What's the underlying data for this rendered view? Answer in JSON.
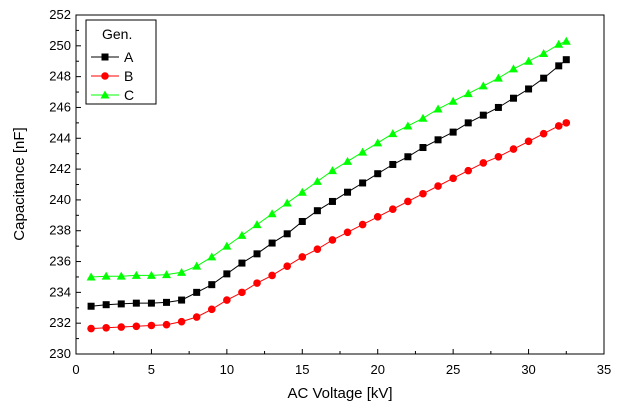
{
  "chart_data": {
    "type": "line",
    "xlabel": "AC Voltage [kV]",
    "ylabel": "Capacitance [nF]",
    "xlim": [
      0,
      35
    ],
    "ylim": [
      230,
      252
    ],
    "x_ticks": [
      0,
      5,
      10,
      15,
      20,
      25,
      30,
      35
    ],
    "y_ticks": [
      230,
      232,
      234,
      236,
      238,
      240,
      242,
      244,
      246,
      248,
      250,
      252
    ],
    "grid": false,
    "legend_title": "Gen.",
    "legend_position": "top-left",
    "x": [
      1,
      2,
      3,
      4,
      5,
      6,
      7,
      8,
      9,
      10,
      11,
      12,
      13,
      14,
      15,
      16,
      17,
      18,
      19,
      20,
      21,
      22,
      23,
      24,
      25,
      26,
      27,
      28,
      29,
      30,
      31,
      32,
      32.5
    ],
    "series": [
      {
        "name": "A",
        "color": "#000000",
        "marker": "square",
        "values": [
          233.1,
          233.2,
          233.25,
          233.3,
          233.3,
          233.35,
          233.5,
          234.0,
          234.5,
          235.2,
          235.9,
          236.5,
          237.2,
          237.8,
          238.6,
          239.3,
          239.9,
          240.5,
          241.1,
          241.7,
          242.3,
          242.8,
          243.4,
          243.9,
          244.4,
          245.0,
          245.5,
          246.0,
          246.6,
          247.2,
          247.9,
          248.7,
          249.1
        ]
      },
      {
        "name": "B",
        "color": "#ff0000",
        "marker": "circle",
        "values": [
          231.65,
          231.7,
          231.75,
          231.8,
          231.85,
          231.9,
          232.1,
          232.4,
          232.9,
          233.5,
          234.0,
          234.6,
          235.1,
          235.7,
          236.3,
          236.8,
          237.4,
          237.9,
          238.4,
          238.9,
          239.4,
          239.9,
          240.4,
          240.9,
          241.4,
          241.9,
          242.4,
          242.8,
          243.3,
          243.8,
          244.3,
          244.8,
          245.0
        ]
      },
      {
        "name": "C",
        "color": "#00ff00",
        "marker": "triangle",
        "values": [
          235.0,
          235.05,
          235.05,
          235.1,
          235.1,
          235.15,
          235.3,
          235.7,
          236.3,
          237.0,
          237.7,
          238.4,
          239.1,
          239.8,
          240.5,
          241.2,
          241.9,
          242.5,
          243.1,
          243.7,
          244.3,
          244.8,
          245.3,
          245.9,
          246.4,
          246.9,
          247.4,
          247.9,
          248.5,
          249.0,
          249.5,
          250.1,
          250.3
        ]
      }
    ]
  }
}
